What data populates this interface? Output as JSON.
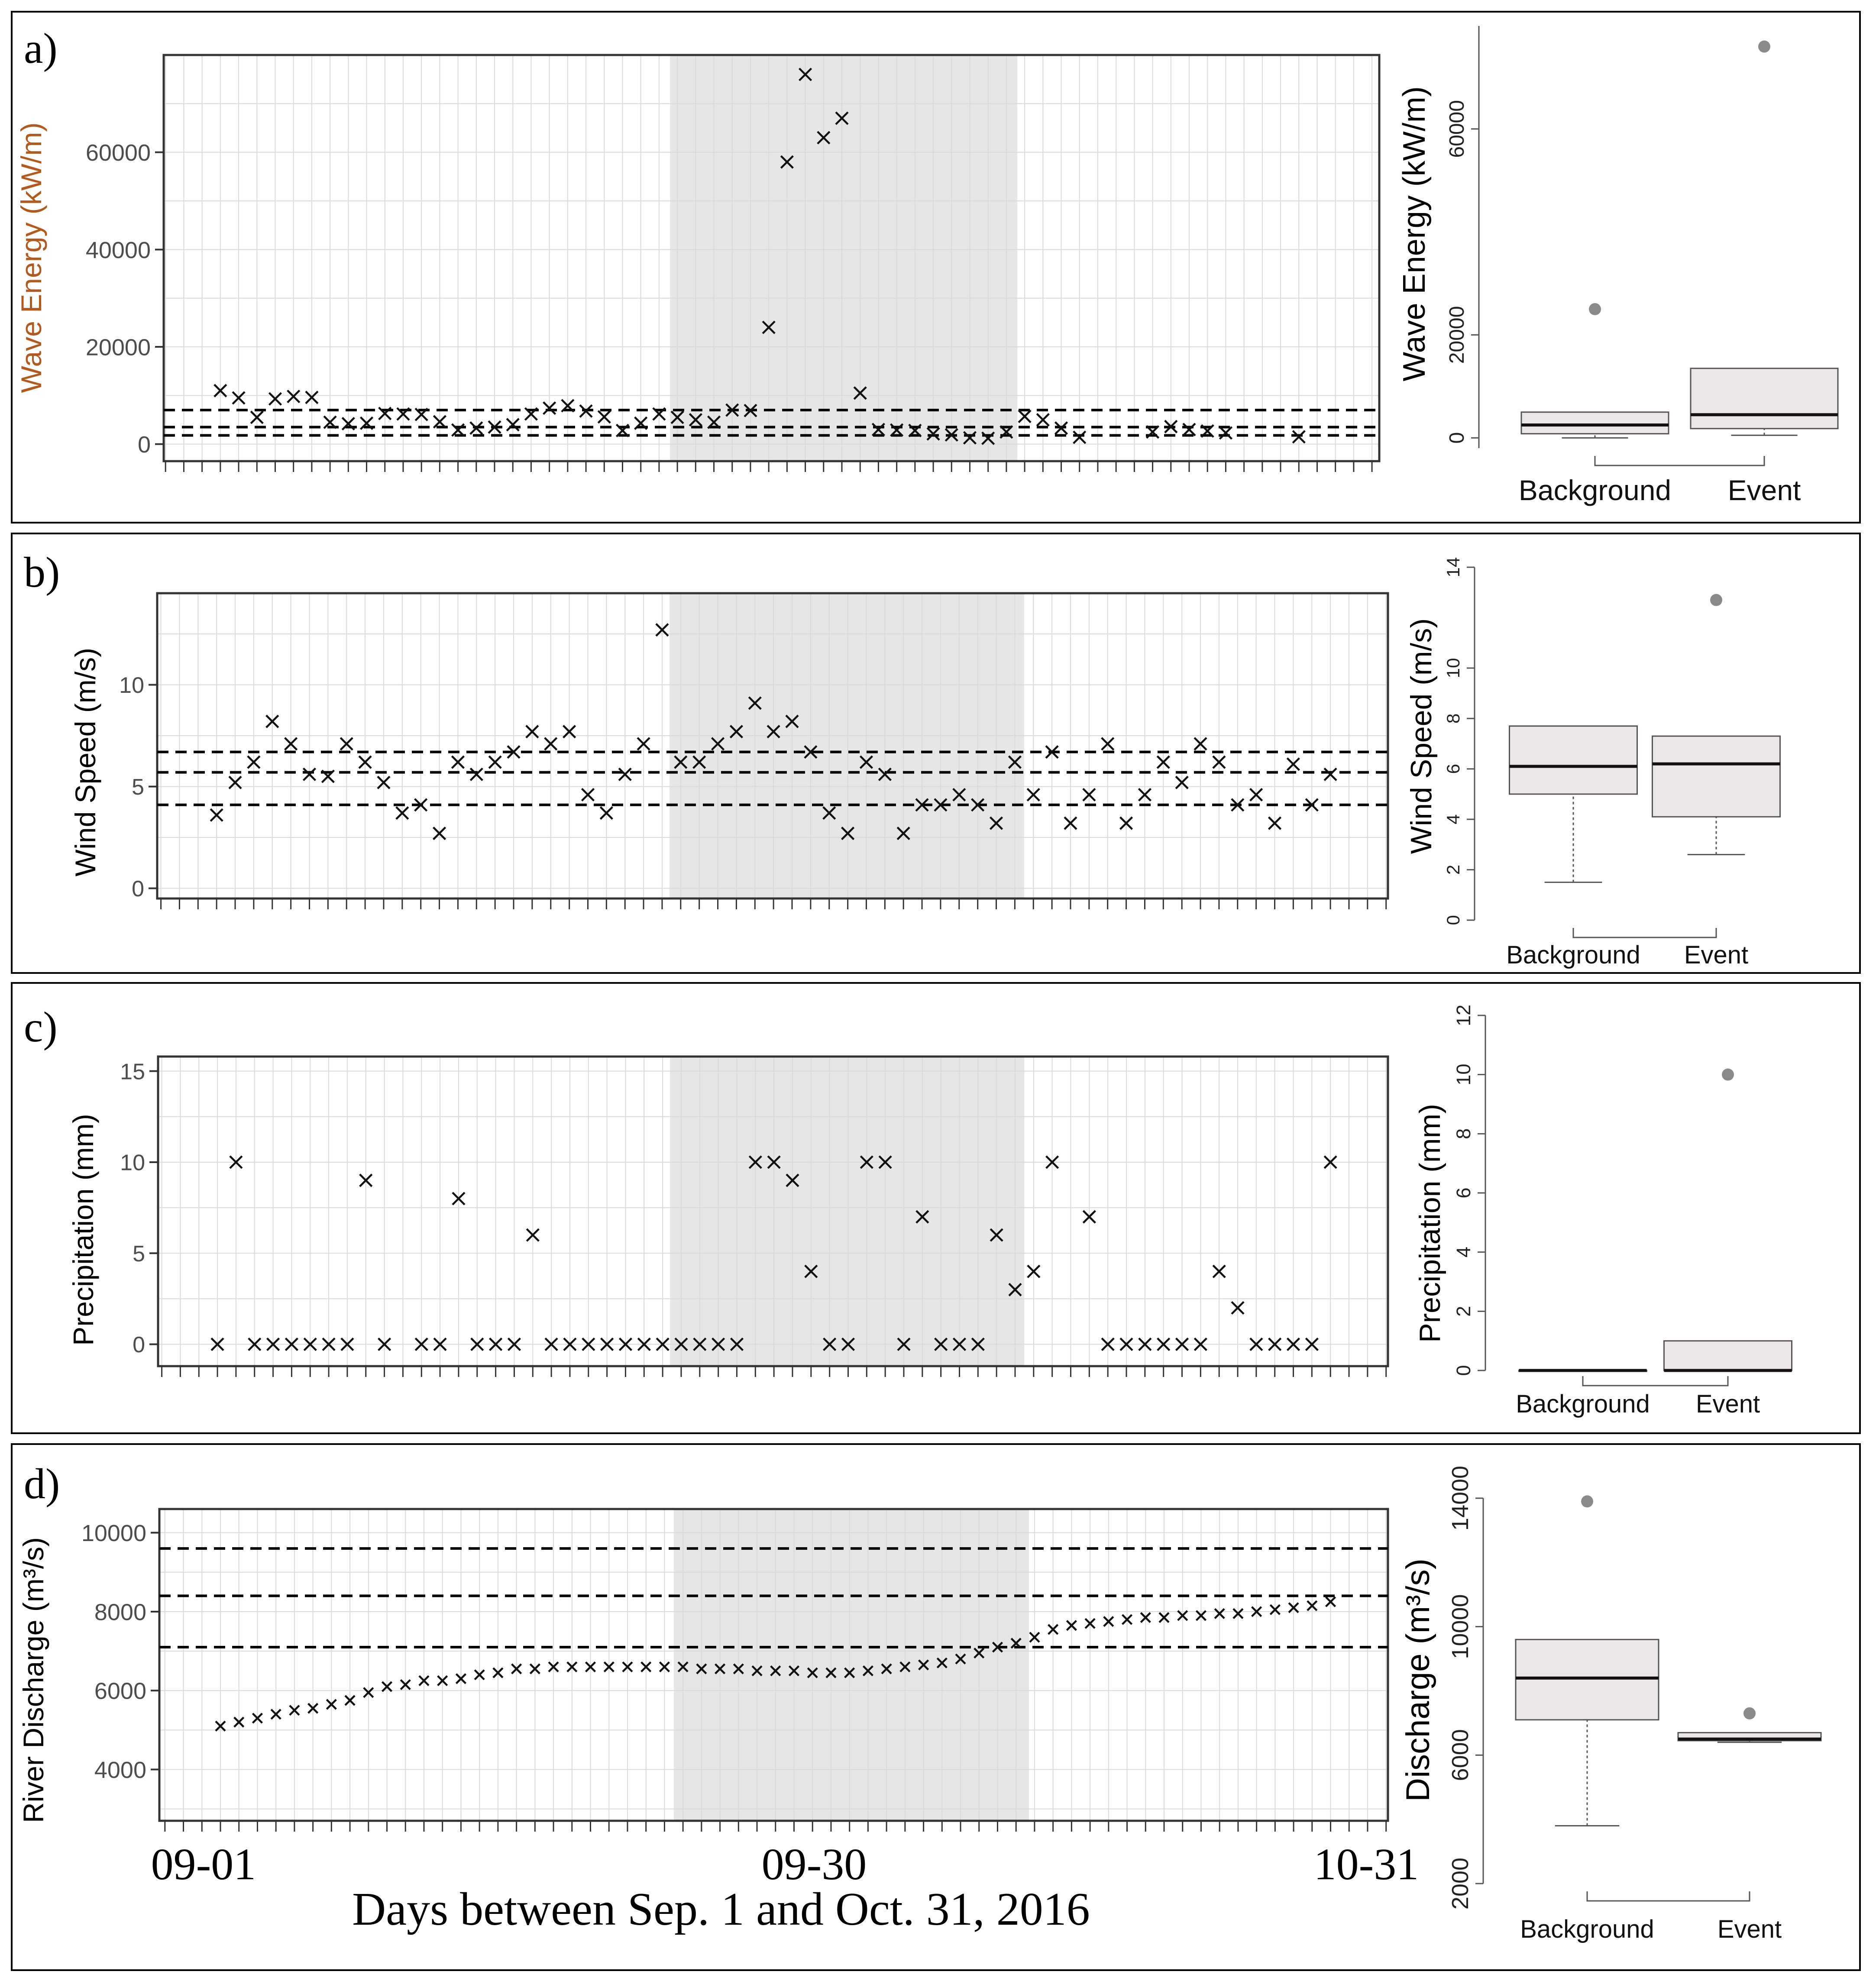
{
  "figure": {
    "x_axis_label": "Days between Sep. 1 and Oct. 31, 2016",
    "x_ticks": [
      {
        "day": 1,
        "label": "09-01"
      },
      {
        "day": 30,
        "label": "09-30"
      },
      {
        "day": 61,
        "label": "10-31"
      }
    ]
  },
  "chart_data": [
    {
      "type": "scatter",
      "panel_label": "a)",
      "ylabel": "Wave Energy (kW/m)",
      "ylabel_color": "#b25a1e",
      "ylim": [
        -3500,
        80000
      ],
      "yticks": [
        0,
        20000,
        40000,
        60000
      ],
      "xlim": [
        -0.1,
        66.4
      ],
      "event_window": [
        27.6,
        46.6
      ],
      "thresholds": [
        1800,
        3500,
        7000
      ],
      "x": [
        3,
        4,
        5,
        6,
        7,
        8,
        9,
        10,
        11,
        12,
        13,
        14,
        15,
        16,
        17,
        18,
        19,
        20,
        21,
        22,
        23,
        24,
        25,
        26,
        27,
        28,
        29,
        30,
        31,
        32,
        33,
        34,
        35,
        36,
        37,
        38,
        39,
        40,
        41,
        42,
        43,
        44,
        45,
        46,
        47,
        48,
        49,
        50,
        54,
        55,
        56,
        57,
        58,
        62
      ],
      "y": [
        11000,
        9500,
        5500,
        9300,
        9800,
        9600,
        4500,
        4200,
        4300,
        6300,
        6200,
        6100,
        4600,
        2900,
        3300,
        3500,
        4000,
        6200,
        7400,
        7900,
        6800,
        5600,
        2800,
        4300,
        6200,
        5500,
        5000,
        4500,
        7000,
        6900,
        24000,
        58000,
        76000,
        63000,
        67000,
        10500,
        3000,
        2900,
        2800,
        2100,
        1900,
        1300,
        1200,
        2500,
        5700,
        5000,
        3300,
        1400,
        2500,
        3600,
        3000,
        2700,
        2300,
        1500
      ],
      "box": {
        "ylim": [
          -2000,
          80000
        ],
        "yticks": [
          0,
          20000,
          60000
        ],
        "categories": [
          "Background",
          "Event"
        ],
        "stats": [
          {
            "whisker_low": 0,
            "q1": 800,
            "median": 2500,
            "q3": 5000,
            "whisker_high": 5000,
            "outliers": [
              25000
            ]
          },
          {
            "whisker_low": 500,
            "q1": 1800,
            "median": 4500,
            "q3": 13500,
            "whisker_high": 13500,
            "outliers": [
              76000
            ]
          }
        ]
      }
    },
    {
      "type": "scatter",
      "panel_label": "b)",
      "ylabel": "Wind Speed (m/s)",
      "ylim": [
        -0.5,
        14.5
      ],
      "yticks": [
        0,
        5,
        10
      ],
      "xlim": [
        -0.2,
        66.1
      ],
      "event_window": [
        27.4,
        46.5
      ],
      "thresholds": [
        4.1,
        5.7,
        6.7
      ],
      "x": [
        3,
        4,
        5,
        6,
        7,
        8,
        9,
        10,
        11,
        12,
        13,
        14,
        15,
        16,
        17,
        18,
        19,
        20,
        21,
        22,
        23,
        24,
        25,
        26,
        27,
        28,
        29,
        30,
        31,
        32,
        33,
        34,
        35,
        36,
        37,
        38,
        39,
        40,
        41,
        42,
        43,
        44,
        45,
        46,
        47,
        48,
        49,
        50,
        51,
        52,
        53,
        54,
        55,
        56,
        57,
        58,
        59,
        60,
        61,
        62,
        63
      ],
      "y": [
        3.6,
        5.2,
        6.2,
        8.2,
        7.1,
        5.6,
        5.5,
        7.1,
        6.2,
        5.2,
        3.7,
        4.1,
        2.7,
        6.2,
        5.6,
        6.2,
        6.7,
        7.7,
        7.1,
        7.7,
        4.6,
        3.7,
        5.6,
        7.1,
        12.7,
        6.2,
        6.2,
        7.1,
        7.7,
        9.1,
        7.7,
        8.2,
        6.7,
        3.7,
        2.7,
        6.2,
        5.6,
        2.7,
        4.1,
        4.1,
        4.6,
        4.1,
        3.2,
        6.2,
        4.6,
        6.7,
        3.2,
        4.6,
        7.1,
        3.2,
        4.6,
        6.2,
        5.2,
        7.1,
        6.2,
        4.1,
        4.6,
        3.2,
        6.1,
        4.1,
        5.6
      ],
      "box": {
        "ylim": [
          0,
          14
        ],
        "yticks": [
          0,
          2,
          4,
          6,
          8,
          10,
          14
        ],
        "categories": [
          "Background",
          "Event"
        ],
        "stats": [
          {
            "whisker_low": 1.5,
            "q1": 5.0,
            "median": 6.1,
            "q3": 7.7,
            "whisker_high": 7.7,
            "outliers": []
          },
          {
            "whisker_low": 2.6,
            "q1": 4.1,
            "median": 6.2,
            "q3": 7.3,
            "whisker_high": 7.3,
            "outliers": [
              12.7
            ]
          }
        ]
      }
    },
    {
      "type": "scatter",
      "panel_label": "c)",
      "ylabel": "Precipitation (mm)",
      "ylim": [
        -1.2,
        15.8
      ],
      "yticks": [
        0,
        5,
        10,
        15
      ],
      "xlim": [
        -0.2,
        66.1
      ],
      "event_window": [
        27.4,
        46.5
      ],
      "thresholds": [],
      "x": [
        3,
        4,
        5,
        6,
        7,
        8,
        9,
        10,
        11,
        12,
        14,
        15,
        16,
        17,
        18,
        19,
        20,
        21,
        22,
        23,
        24,
        25,
        26,
        27,
        28,
        29,
        30,
        31,
        32,
        33,
        34,
        35,
        36,
        37,
        38,
        39,
        40,
        41,
        42,
        43,
        44,
        45,
        46,
        47,
        48,
        50,
        51,
        52,
        53,
        54,
        55,
        56,
        57,
        58,
        59,
        60,
        61,
        62,
        63
      ],
      "y": [
        0,
        10,
        0,
        0,
        0,
        0,
        0,
        0,
        9,
        0,
        0,
        0,
        8,
        0,
        0,
        0,
        6,
        0,
        0,
        0,
        0,
        0,
        0,
        0,
        0,
        0,
        0,
        0,
        10,
        10,
        9,
        4,
        0,
        0,
        10,
        10,
        0,
        7,
        0,
        0,
        0,
        6,
        3,
        4,
        10,
        7,
        0,
        0,
        0,
        0,
        0,
        0,
        4,
        2,
        0,
        0,
        0,
        0,
        10
      ],
      "box": {
        "ylim": [
          0,
          12
        ],
        "yticks": [
          0,
          2,
          4,
          6,
          8,
          10,
          12
        ],
        "categories": [
          "Background",
          "Event"
        ],
        "stats": [
          {
            "whisker_low": 0,
            "q1": 0,
            "median": 0,
            "q3": 0,
            "whisker_high": 0,
            "outliers": []
          },
          {
            "whisker_low": 0,
            "q1": 0,
            "median": 0,
            "q3": 1,
            "whisker_high": 1,
            "outliers": [
              10
            ]
          }
        ]
      }
    },
    {
      "type": "scatter",
      "panel_label": "d)",
      "ylabel": "River Discharge (m³/s)",
      "ylim": [
        2700,
        10600
      ],
      "yticks": [
        4000,
        6000,
        8000,
        10000
      ],
      "xlim": [
        -0.3,
        66.1
      ],
      "event_window": [
        27.5,
        46.7
      ],
      "thresholds": [
        7100,
        8400,
        9600
      ],
      "x": [
        3,
        4,
        5,
        6,
        7,
        8,
        9,
        10,
        11,
        12,
        13,
        14,
        15,
        16,
        17,
        18,
        19,
        20,
        21,
        22,
        23,
        24,
        25,
        26,
        27,
        28,
        29,
        30,
        31,
        32,
        33,
        34,
        35,
        36,
        37,
        38,
        39,
        40,
        41,
        42,
        43,
        44,
        45,
        46,
        47,
        48,
        49,
        50,
        51,
        52,
        53,
        54,
        55,
        56,
        57,
        58,
        59,
        60,
        61,
        62,
        63
      ],
      "y": [
        5100,
        5200,
        5300,
        5400,
        5500,
        5550,
        5650,
        5750,
        5950,
        6100,
        6150,
        6250,
        6250,
        6300,
        6400,
        6450,
        6550,
        6550,
        6600,
        6600,
        6600,
        6600,
        6600,
        6600,
        6600,
        6600,
        6550,
        6550,
        6550,
        6500,
        6500,
        6500,
        6450,
        6450,
        6450,
        6500,
        6550,
        6600,
        6650,
        6700,
        6800,
        6950,
        7100,
        7200,
        7350,
        7550,
        7650,
        7700,
        7750,
        7800,
        7850,
        7850,
        7900,
        7900,
        7950,
        7950,
        8000,
        8050,
        8100,
        8150,
        8250
      ],
      "box": {
        "ylim": [
          2000,
          14000
        ],
        "yticks": [
          2000,
          6000,
          10000,
          14000
        ],
        "ylabel": "Discharge (m³/s)",
        "categories": [
          "Background",
          "Event"
        ],
        "stats": [
          {
            "whisker_low": 3800,
            "q1": 7100,
            "median": 8400,
            "q3": 9600,
            "whisker_high": 9600,
            "outliers": [
              13900
            ]
          },
          {
            "whisker_low": 6400,
            "q1": 6450,
            "median": 6500,
            "q3": 6700,
            "whisker_high": 6700,
            "outliers": [
              7300
            ]
          }
        ]
      }
    }
  ]
}
